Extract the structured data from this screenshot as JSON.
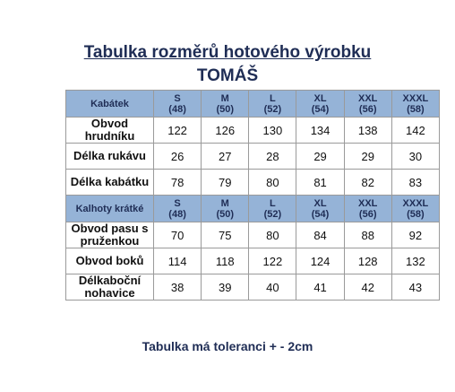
{
  "header": {
    "title": "Tabulka rozměrů hotového výrobku",
    "subtitle": "TOMÁŠ"
  },
  "table": {
    "sections": [
      {
        "label": "Kabátek",
        "sizes": [
          [
            "S",
            "(48)"
          ],
          [
            "M",
            "(50)"
          ],
          [
            "L",
            "(52)"
          ],
          [
            "XL",
            "(54)"
          ],
          [
            "XXL",
            "(56)"
          ],
          [
            "XXXL",
            "(58)"
          ]
        ],
        "rows": [
          {
            "label": "Obvod hrudníku",
            "values": [
              122,
              126,
              130,
              134,
              138,
              142
            ]
          },
          {
            "label": "Délka rukávu",
            "values": [
              26,
              27,
              28,
              29,
              29,
              30
            ]
          },
          {
            "label": "Délka kabátku",
            "values": [
              78,
              79,
              80,
              81,
              82,
              83
            ]
          }
        ]
      },
      {
        "label": "Kalhoty krátké",
        "sizes": [
          [
            "S",
            "(48)"
          ],
          [
            "M",
            "(50)"
          ],
          [
            "L",
            "(52)"
          ],
          [
            "XL",
            "(54)"
          ],
          [
            "XXL",
            "(56)"
          ],
          [
            "XXXL",
            "(58)"
          ]
        ],
        "rows": [
          {
            "label": "Obvod pasu s pruženkou",
            "values": [
              70,
              75,
              80,
              84,
              88,
              92
            ]
          },
          {
            "label": "Obvod boků",
            "values": [
              114,
              118,
              122,
              124,
              128,
              132
            ]
          },
          {
            "label": "Délkaboční nohavice",
            "values": [
              38,
              39,
              40,
              41,
              42,
              43
            ]
          }
        ]
      }
    ]
  },
  "footer": "Tabulka má toleranci + - 2cm"
}
